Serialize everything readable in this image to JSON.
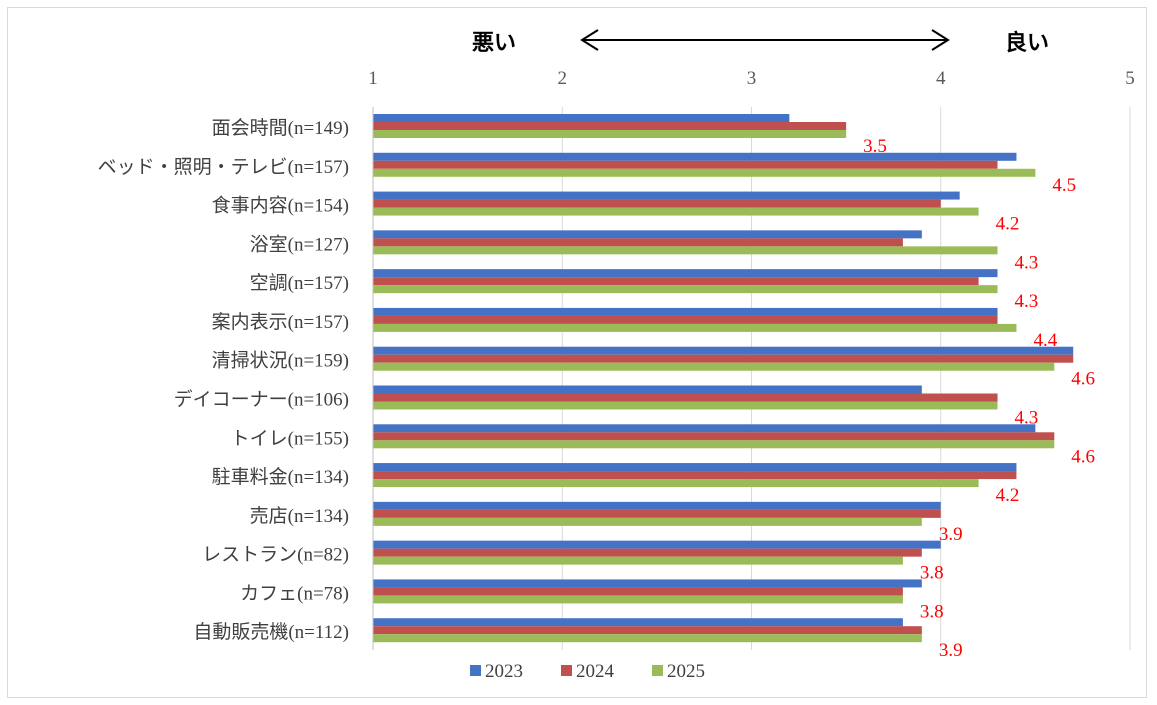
{
  "chart_data": {
    "type": "bar",
    "orientation": "horizontal",
    "categories": [
      "面会時間(n=149)",
      "ベッド・照明・テレビ(n=157)",
      "食事内容(n=154)",
      "浴室(n=127)",
      "空調(n=157)",
      "案内表示(n=157)",
      "清掃状況(n=159)",
      "デイコーナー(n=106)",
      "トイレ(n=155)",
      "駐車料金(n=134)",
      "売店(n=134)",
      "レストラン(n=82)",
      "カフェ(n=78)",
      "自動販売機(n=112)"
    ],
    "series": [
      {
        "name": "2023",
        "color": "#4472c4",
        "values": [
          3.2,
          4.4,
          4.1,
          3.9,
          4.3,
          4.3,
          4.7,
          3.9,
          4.5,
          4.4,
          4.0,
          4.0,
          3.9,
          3.8
        ]
      },
      {
        "name": "2024",
        "color": "#c0504d",
        "values": [
          3.5,
          4.3,
          4.0,
          3.8,
          4.2,
          4.3,
          4.7,
          4.3,
          4.6,
          4.4,
          4.0,
          3.9,
          3.8,
          3.9
        ]
      },
      {
        "name": "2025",
        "color": "#9bbb59",
        "values": [
          3.5,
          4.5,
          4.2,
          4.3,
          4.3,
          4.4,
          4.6,
          4.3,
          4.6,
          4.2,
          3.9,
          3.8,
          3.8,
          3.9
        ]
      }
    ],
    "data_labels": {
      "series": "2025",
      "values": [
        "3.5",
        "4.5",
        "4.2",
        "4.3",
        "4.3",
        "4.4",
        "4.6",
        "4.3",
        "4.6",
        "4.2",
        "3.9",
        "3.8",
        "3.8",
        "3.9"
      ],
      "color": "#ff0000"
    },
    "x_ticks": [
      "1",
      "2",
      "3",
      "4",
      "5"
    ],
    "xlim": [
      1,
      5
    ],
    "grid": "vertical",
    "legend": "bottom",
    "scale_annotation": {
      "left": "悪い",
      "right": "良い",
      "arrow": "double-headed"
    },
    "title": "",
    "xlabel": "",
    "ylabel": ""
  }
}
